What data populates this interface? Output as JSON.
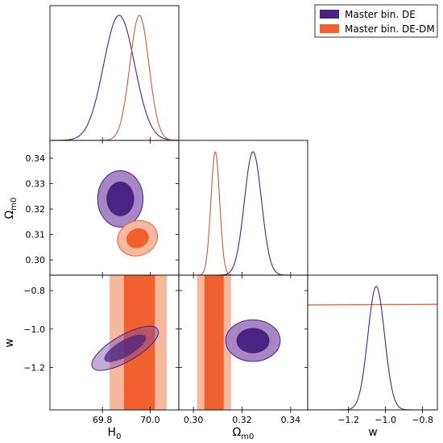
{
  "colors": {
    "master_de": "#4b2382",
    "master_de_light": "#a886c4",
    "master_de_dm": "#f0612f",
    "master_de_dm_light": "#f7b8a0"
  },
  "legend": {
    "placement": "top-right",
    "entries": [
      "Master bin. DE",
      "Master bin. DE-DM"
    ]
  },
  "axes_labels": {
    "h0": {
      "main": "H",
      "sub": "0"
    },
    "om": {
      "main": "Ω",
      "sub": "m0"
    },
    "w": {
      "main": "w",
      "sub": ""
    }
  },
  "chart_data": {
    "type": "corner",
    "parameters": [
      "H0",
      "Ωm0",
      "w"
    ],
    "ranges": {
      "H0": [
        69.58,
        70.12
      ],
      "Om": [
        0.294,
        0.347
      ],
      "w": [
        -1.42,
        -0.72
      ]
    },
    "ticks": {
      "H0": {
        "values": [
          69.8,
          70.0
        ],
        "labels": [
          "69.8",
          "70.0"
        ]
      },
      "Om": {
        "values": [
          0.3,
          0.32,
          0.34
        ],
        "labels": [
          "0.30",
          "0.32",
          "0.34"
        ]
      },
      "Om_y": {
        "values": [
          0.3,
          0.31,
          0.32,
          0.33,
          0.34
        ],
        "labels": [
          "0.30",
          "0.31",
          "0.32",
          "0.33",
          "0.34"
        ]
      },
      "w": {
        "values": [
          -1.2,
          -1.0,
          -0.8
        ],
        "labels": [
          "−1.2",
          "−1.0",
          "−0.8"
        ]
      }
    },
    "series": [
      {
        "name": "Master bin. DE",
        "H0": {
          "mean": 69.87,
          "sigma": 0.065
        },
        "Om": {
          "mean": 0.3245,
          "sigma": 0.0035
        },
        "w": {
          "mean": -1.05,
          "sigma": 0.045
        },
        "contours": {
          "H0_Om": {
            "center": [
              69.875,
              0.324
            ],
            "inner_radii": [
              0.058,
              0.0068
            ],
            "outer_radii": [
              0.095,
              0.0111
            ],
            "angle_deg": 0
          },
          "H0_w": {
            "center": [
              69.895,
              -1.1
            ],
            "inner_radii": [
              0.099,
              0.042
            ],
            "outer_radii": [
              0.158,
              0.068
            ],
            "angle_deg": -30
          },
          "Om_w": {
            "center": [
              0.3245,
              -1.06
            ],
            "inner_radii": [
              0.0068,
              0.066
            ],
            "outer_radii": [
              0.0112,
              0.108
            ],
            "angle_deg": 0
          }
        }
      },
      {
        "name": "Master bin. DE-DM",
        "H0": {
          "mean": 69.955,
          "sigma": 0.04
        },
        "Om": {
          "mean": 0.309,
          "sigma": 0.0018
        },
        "w": {
          "mean": -0.855,
          "flat": true
        },
        "contours": {
          "H0_Om": {
            "center": [
              69.947,
              0.3085
            ],
            "inner_radii": [
              0.048,
              0.0038
            ],
            "outer_radii": [
              0.085,
              0.0068
            ],
            "angle_deg": -20
          },
          "H0_w": {
            "band_inner": [
              69.89,
              70.02
            ],
            "band_outer": [
              69.83,
              70.07
            ]
          },
          "Om_w": {
            "band_inner": [
              0.3045,
              0.3125
            ],
            "band_outer": [
              0.3015,
              0.3155
            ]
          }
        }
      }
    ]
  }
}
